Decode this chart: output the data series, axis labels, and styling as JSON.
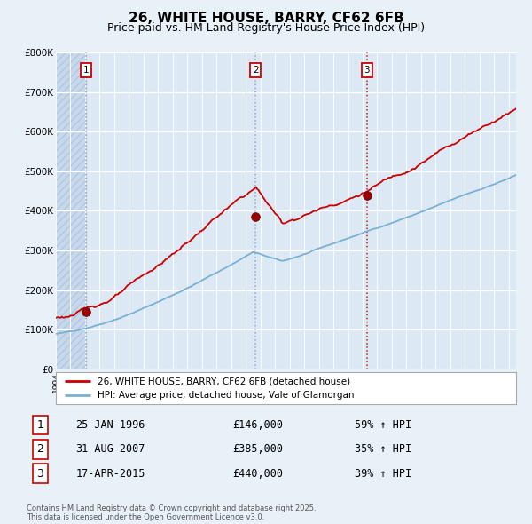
{
  "title": "26, WHITE HOUSE, BARRY, CF62 6FB",
  "subtitle": "Price paid vs. HM Land Registry's House Price Index (HPI)",
  "title_fontsize": 11,
  "subtitle_fontsize": 9,
  "bg_color": "#e8f0f8",
  "plot_bg_color": "#dce9f5",
  "grid_color": "#ffffff",
  "hatch_color": "#c8d8ea",
  "x_start_year": 1994,
  "x_end_year": 2025,
  "y_min": 0,
  "y_max": 800000,
  "y_ticks": [
    0,
    100000,
    200000,
    300000,
    400000,
    500000,
    600000,
    700000,
    800000
  ],
  "y_tick_labels": [
    "£0",
    "£100K",
    "£200K",
    "£300K",
    "£400K",
    "£500K",
    "£600K",
    "£700K",
    "£800K"
  ],
  "red_line_color": "#cc0000",
  "blue_line_color": "#7ab0d4",
  "purchases": [
    {
      "label": "1",
      "date_str": "25-JAN-1996",
      "year": 1996.07,
      "price": 146000,
      "pct": "59%",
      "direction": "↑",
      "vline_color": "#8899bb",
      "vline_style": ":"
    },
    {
      "label": "2",
      "date_str": "31-AUG-2007",
      "year": 2007.67,
      "price": 385000,
      "pct": "35%",
      "direction": "↑",
      "vline_color": "#8899bb",
      "vline_style": ":"
    },
    {
      "label": "3",
      "date_str": "17-APR-2015",
      "year": 2015.29,
      "price": 440000,
      "pct": "39%",
      "direction": "↑",
      "vline_color": "#cc0000",
      "vline_style": ":"
    }
  ],
  "legend_line1": "26, WHITE HOUSE, BARRY, CF62 6FB (detached house)",
  "legend_line2": "HPI: Average price, detached house, Vale of Glamorgan",
  "footer": "Contains HM Land Registry data © Crown copyright and database right 2025.\nThis data is licensed under the Open Government Licence v3.0."
}
